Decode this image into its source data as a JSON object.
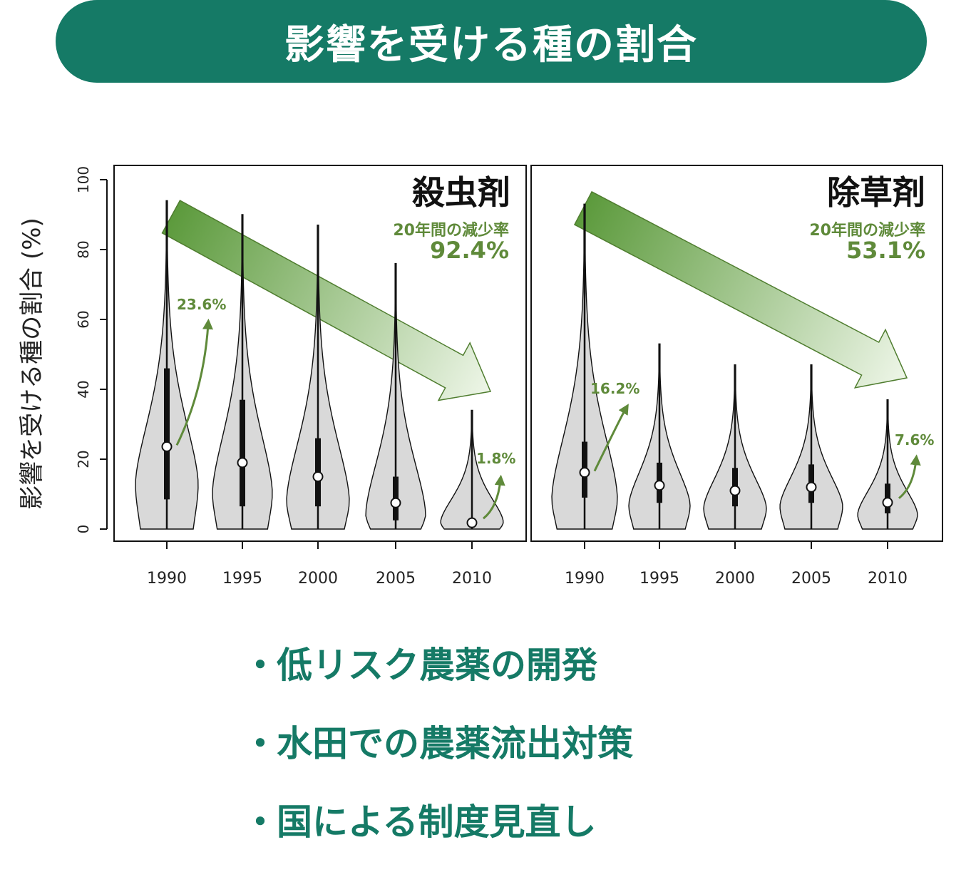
{
  "header": {
    "title": "影響を受ける種の割合"
  },
  "chart_data": [
    {
      "type": "violin",
      "title": "殺虫剤",
      "ylabel": "影響を受ける種の割合 (%)",
      "ylim": [
        0,
        100
      ],
      "yticks": [
        "0",
        "20",
        "40",
        "60",
        "80",
        "100"
      ],
      "categories": [
        "1990",
        "1995",
        "2000",
        "2005",
        "2010"
      ],
      "medians": [
        23.6,
        19,
        15,
        7.5,
        1.8
      ],
      "q1": [
        8.5,
        6.5,
        6.5,
        2.5,
        0.5
      ],
      "q3": [
        46,
        37,
        26,
        15,
        3
      ],
      "min": [
        0,
        0,
        0,
        0,
        0
      ],
      "max": [
        94,
        90,
        87,
        76,
        34
      ],
      "reduction_label": "20年間の減少率",
      "reduction_value": "92.4%",
      "start_label": "23.6%",
      "end_label": "1.8%"
    },
    {
      "type": "violin",
      "title": "除草剤",
      "ylim": [
        0,
        100
      ],
      "categories": [
        "1990",
        "1995",
        "2000",
        "2005",
        "2010"
      ],
      "medians": [
        16.2,
        12.5,
        11,
        12,
        7.6
      ],
      "q1": [
        9,
        7.5,
        6.5,
        7.5,
        4.5
      ],
      "q3": [
        25,
        19,
        17.5,
        18.5,
        13
      ],
      "min": [
        0,
        0,
        0,
        0,
        0
      ],
      "max": [
        93,
        53,
        47,
        47,
        37
      ],
      "reduction_label": "20年間の減少率",
      "reduction_value": "53.1%",
      "start_label": "16.2%",
      "end_label": "7.6%"
    }
  ],
  "bullets": [
    "低リスク農薬の開発",
    "水田での農薬流出対策",
    "国による制度見直し"
  ],
  "bullet_marker": "・",
  "colors": {
    "accent": "#157a66",
    "violin_fill": "#d9d9d9",
    "arrow_dark": "#5c9a3c",
    "arrow_light": "#e8f3e0",
    "label_green": "#5f8a3a"
  }
}
